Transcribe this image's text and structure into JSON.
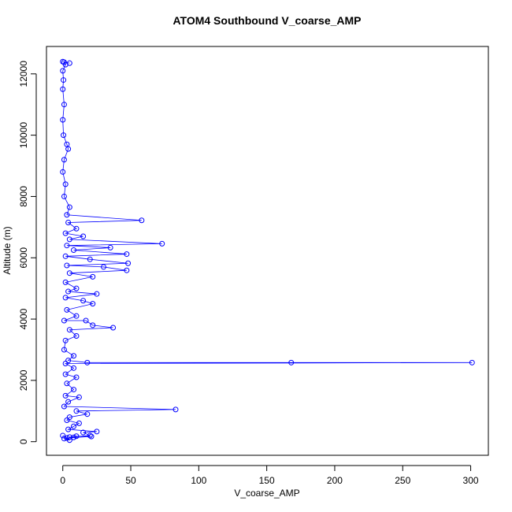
{
  "chart_data": {
    "type": "line",
    "marker": "circle",
    "title": "ATOM4 Southbound V_coarse_AMP",
    "xlabel": "V_coarse_AMP",
    "ylabel": "Altitude (m)",
    "color": "#0000ff",
    "x": [
      0,
      5,
      1,
      2,
      0,
      0.5,
      0,
      1,
      0,
      0.5,
      3,
      4,
      1,
      0,
      2,
      1,
      5,
      3,
      58,
      4,
      10,
      2,
      15,
      5,
      73,
      3,
      35,
      8,
      47,
      2,
      20,
      48,
      3,
      30,
      47,
      5,
      22,
      2,
      10,
      4,
      25,
      2,
      15,
      22,
      3,
      10,
      1,
      17,
      22,
      37,
      5,
      10,
      2,
      1,
      8,
      4,
      18,
      168,
      301,
      2,
      8,
      2,
      10,
      3,
      8,
      2,
      12,
      4,
      1,
      83,
      10,
      18,
      5,
      3,
      12,
      8,
      4,
      25,
      15,
      20,
      5,
      10,
      21,
      3,
      8,
      1,
      5,
      0
    ],
    "values": [
      12400,
      12350,
      12380,
      12300,
      12100,
      11800,
      11500,
      11000,
      10500,
      10000,
      9700,
      9550,
      9200,
      8800,
      8400,
      8000,
      7650,
      7400,
      7220,
      7150,
      6950,
      6800,
      6700,
      6600,
      6460,
      6400,
      6330,
      6250,
      6120,
      6050,
      5950,
      5820,
      5750,
      5700,
      5590,
      5500,
      5380,
      5200,
      5000,
      4900,
      4820,
      4700,
      4600,
      4500,
      4300,
      4100,
      3950,
      3950,
      3800,
      3720,
      3650,
      3450,
      3300,
      3000,
      2800,
      2650,
      2580,
      2580,
      2580,
      2550,
      2400,
      2200,
      2100,
      1900,
      1700,
      1500,
      1450,
      1300,
      1150,
      1050,
      1000,
      900,
      800,
      700,
      600,
      500,
      400,
      330,
      300,
      200,
      150,
      180,
      170,
      120,
      140,
      100,
      50,
      200
    ],
    "xlim": [
      -12,
      313
    ],
    "ylim": [
      -444,
      12894
    ],
    "xticks": [
      0,
      50,
      100,
      150,
      200,
      250,
      300
    ],
    "yticks": [
      0,
      2000,
      4000,
      6000,
      8000,
      10000,
      12000
    ]
  }
}
